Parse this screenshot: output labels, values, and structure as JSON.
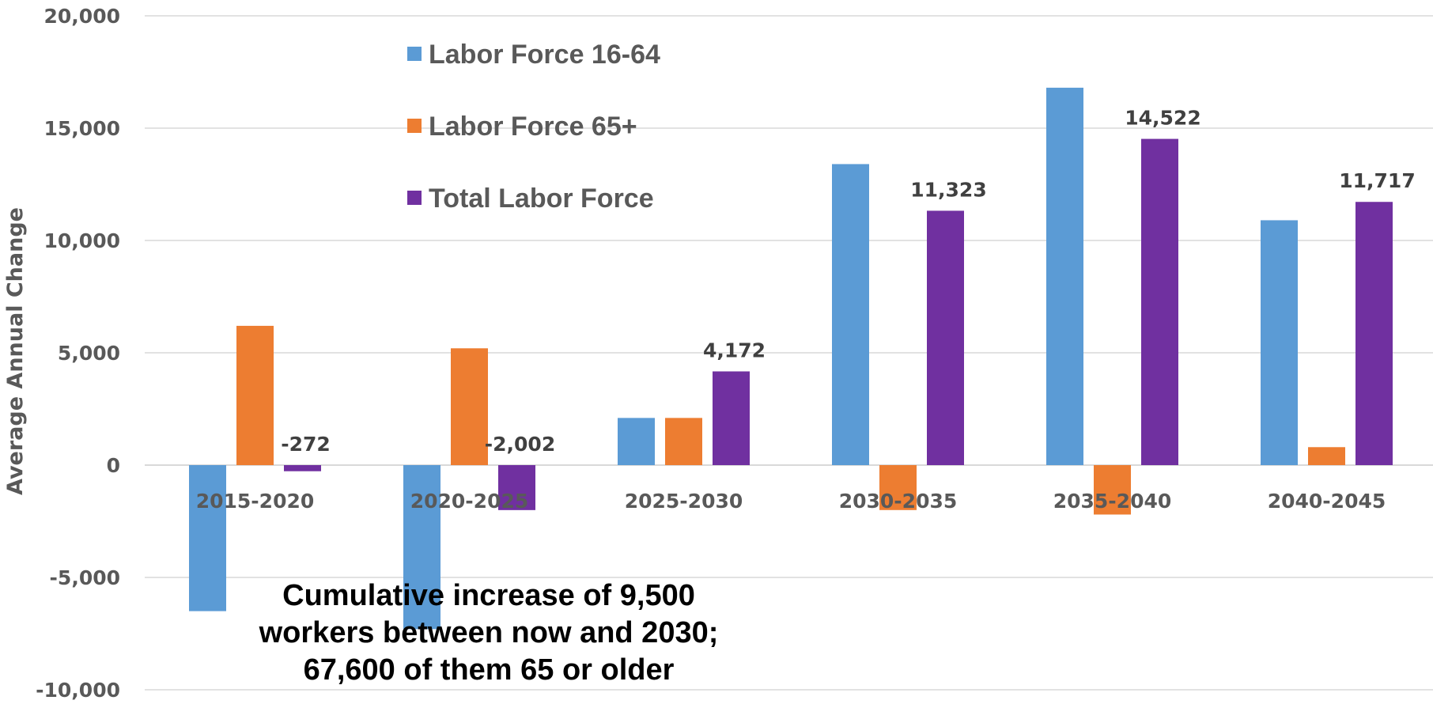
{
  "chart_data": {
    "type": "bar",
    "title": "",
    "xlabel": "",
    "ylabel": "Average Annual Change",
    "ylim": [
      -10000,
      20000
    ],
    "yticks": [
      -10000,
      -5000,
      0,
      5000,
      10000,
      15000,
      20000
    ],
    "ytick_labels": [
      "-10,000",
      "-5,000",
      "0",
      "5,000",
      "10,000",
      "15,000",
      "20,000"
    ],
    "grid": true,
    "legend_position": "top-left",
    "categories": [
      "2015-2020",
      "2020-2025",
      "2025-2030",
      "2030-2035",
      "2035-2040",
      "2040-2045"
    ],
    "series": [
      {
        "name": "Labor Force 16-64",
        "color": "#5b9bd5",
        "values": [
          -6500,
          -7300,
          2100,
          13400,
          16800,
          10900
        ]
      },
      {
        "name": "Labor Force 65+",
        "color": "#ed7d31",
        "values": [
          6200,
          5200,
          2100,
          -2000,
          -2200,
          800
        ]
      },
      {
        "name": "Total Labor Force",
        "color": "#7030a0",
        "values": [
          -272,
          -2002,
          4172,
          11323,
          14522,
          11717
        ],
        "data_labels": [
          "-272",
          "-2,002",
          "4,172",
          "11,323",
          "14,522",
          "11,717"
        ]
      }
    ],
    "annotation": {
      "lines": [
        "Cumulative increase of 9,500",
        "workers between now and 2030;",
        "67,600 of them 65 or older"
      ]
    }
  }
}
